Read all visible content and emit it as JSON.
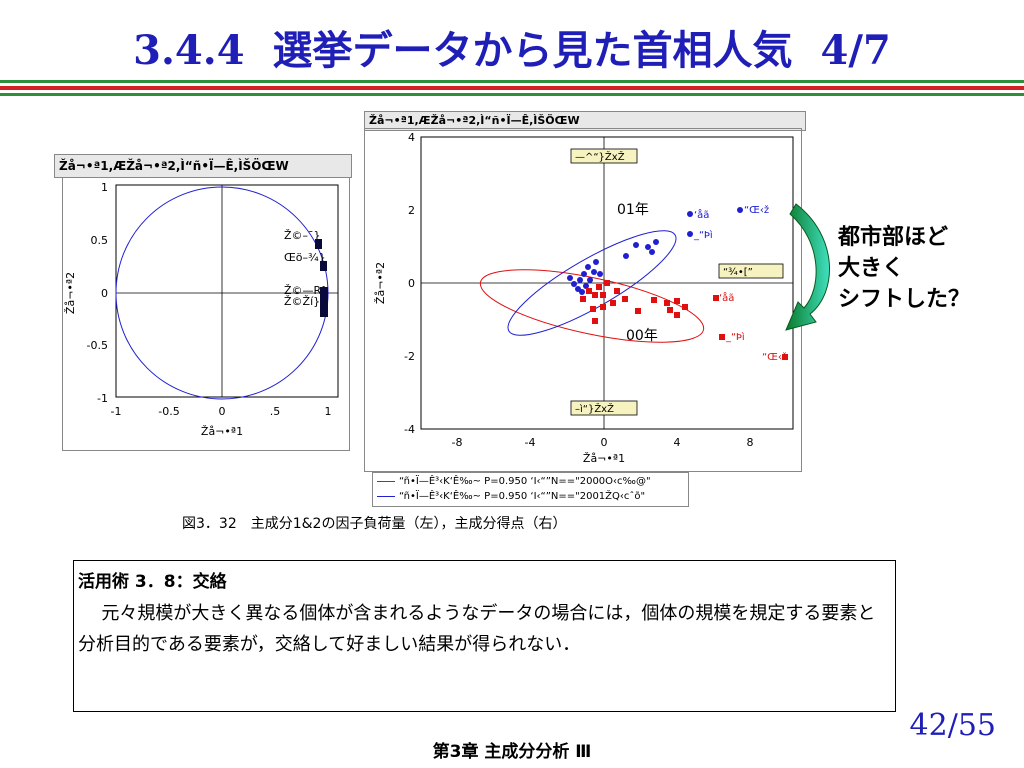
{
  "slide": {
    "section": "3.4.4",
    "title": "選挙データから見た首相人気",
    "page_part": "4/7",
    "page_number": "42/55",
    "footer": "第3章 主成分分析 Ⅲ"
  },
  "left_chart": {
    "header": "Žå¬•ª1,ÆŽå¬•ª2,Ì“ñ•Ï—Ê,ÌŠÖŒW",
    "ylabel": "Žå¬•ª2",
    "xlabel": "Žå¬•ª1",
    "yticks": [
      "1",
      "0.5",
      "0",
      "-0.5",
      "-1"
    ],
    "xticks": [
      "-1",
      "-0.5",
      "0",
      ".5",
      "1"
    ],
    "var_labels": [
      "Ž©–¯}",
      "Œö–¾}",
      "Ž©—R}",
      "Ž©Ží}"
    ]
  },
  "right_chart": {
    "header": "Žå¬•ª1,ÆŽå¬•ª2,Ì“ñ•Ï—Ê,ÌŠÖŒW",
    "ylabel": "Žå¬•ª2",
    "xlabel": "Žå¬•ª1",
    "yticks": [
      "4",
      "2",
      "0",
      "-2",
      "-4"
    ],
    "xticks": [
      "-8",
      "-4",
      "0",
      "4",
      "8"
    ],
    "box_top": "—^“}ŽxŽ",
    "box_right": "“¾•[”",
    "box_bottom": "–ì“}ŽxŽ",
    "year_01": "01年",
    "year_00": "00年",
    "blue_labels": [
      "‘åã",
      "“Œ‹ž",
      "_“Þì"
    ],
    "red_labels": [
      "‘åã",
      "_“Þì",
      "“Œ‹ž"
    ],
    "legend": [
      "“ñ•Ï—Ê³‹K‘Ê‰~ P=0.950  ‘I‹“”N==\"2000O‹c‰@\"",
      "“ñ•Ï—Ê³‹K‘Ê‰~ P=0.950  ‘I‹“”N==\"2001ŽQ‹cˆõ\""
    ],
    "colors": {
      "blue": "#2020d0",
      "red": "#e01010"
    }
  },
  "annotation": [
    "都市部ほど",
    "大きく",
    "シフトした？"
  ],
  "caption": "図3．32　主成分1&2の因子負荷量（左），主成分得点（右）",
  "note": {
    "heading": "活用術 3．8：交絡",
    "body": "元々規模が大きく異なる個体が含まれるようなデータの場合には，個体の規模を規定する要素と分析目的である要素が，交絡して好ましい結果が得られない．"
  }
}
